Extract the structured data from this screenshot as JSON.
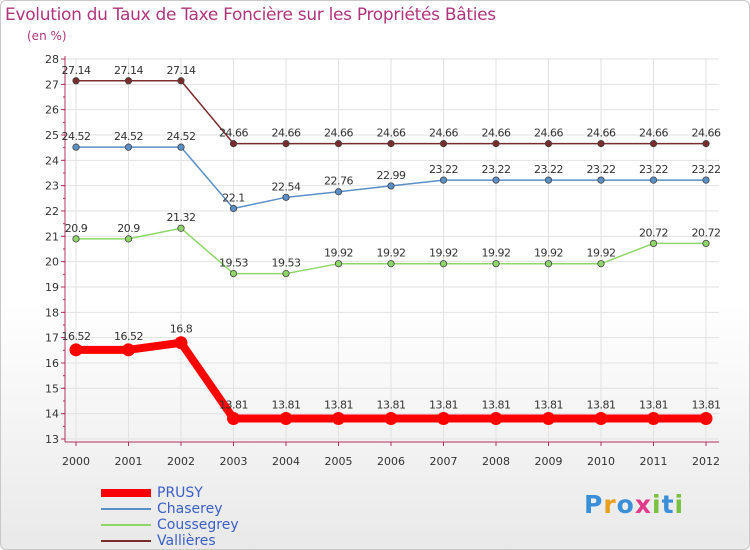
{
  "chart_data": {
    "type": "line",
    "title": "Evolution du Taux de Taxe Foncière sur les Propriétés Bâties",
    "ylabel": "(en %)",
    "xlabel": "",
    "ylim": [
      13,
      28
    ],
    "yticks": [
      "13",
      "14",
      "15",
      "16",
      "17",
      "18",
      "19",
      "20",
      "21",
      "22",
      "23",
      "24",
      "25",
      "26",
      "27",
      "28"
    ],
    "categories": [
      "2000",
      "2001",
      "2002",
      "2003",
      "2004",
      "2005",
      "2006",
      "2007",
      "2008",
      "2009",
      "2010",
      "2011",
      "2012"
    ],
    "series": [
      {
        "name": "PRUSY",
        "color": "#ff0000",
        "values": [
          16.52,
          16.52,
          16.8,
          13.81,
          13.81,
          13.81,
          13.81,
          13.81,
          13.81,
          13.81,
          13.81,
          13.81,
          13.81
        ],
        "labels": [
          "16.52",
          "16.52",
          "16.8",
          "13.81",
          "13.81",
          "13.81",
          "13.81",
          "13.81",
          "13.81",
          "13.81",
          "13.81",
          "13.81",
          "13.81"
        ]
      },
      {
        "name": "Chaserey",
        "color": "#5b8fc7",
        "values": [
          24.52,
          24.52,
          24.52,
          22.1,
          22.54,
          22.76,
          22.99,
          23.22,
          23.22,
          23.22,
          23.22,
          23.22,
          23.22
        ],
        "labels": [
          "24.52",
          "24.52",
          "24.52",
          "22.1",
          "22.54",
          "22.76",
          "22.99",
          "23.22",
          "23.22",
          "23.22",
          "23.22",
          "23.22",
          "23.22"
        ]
      },
      {
        "name": "Coussegrey",
        "color": "#8fd66a",
        "values": [
          20.9,
          20.9,
          21.32,
          19.53,
          19.53,
          19.92,
          19.92,
          19.92,
          19.92,
          19.92,
          19.92,
          20.72,
          20.72
        ],
        "labels": [
          "20.9",
          "20.9",
          "21.32",
          "19.53",
          "19.53",
          "19.92",
          "19.92",
          "19.92",
          "19.92",
          "19.92",
          "19.92",
          "20.72",
          "20.72"
        ]
      },
      {
        "name": "Vallières",
        "color": "#7a2b2b",
        "values": [
          27.14,
          27.14,
          27.14,
          24.66,
          24.66,
          24.66,
          24.66,
          24.66,
          24.66,
          24.66,
          24.66,
          24.66,
          24.66
        ],
        "labels": [
          "27.14",
          "27.14",
          "27.14",
          "24.66",
          "24.66",
          "24.66",
          "24.66",
          "24.66",
          "24.66",
          "24.66",
          "24.66",
          "24.66",
          "24.66"
        ]
      }
    ],
    "grid": true,
    "legend": "bottom-left"
  },
  "logo": {
    "text": [
      "P",
      "r",
      "o",
      "x",
      "i",
      "t",
      "i"
    ],
    "colors": [
      "#3a8fd8",
      "#e6a020",
      "#3a8fd8",
      "#e23a8a",
      "#7ac142",
      "#3a8fd8",
      "#7ac142"
    ]
  }
}
